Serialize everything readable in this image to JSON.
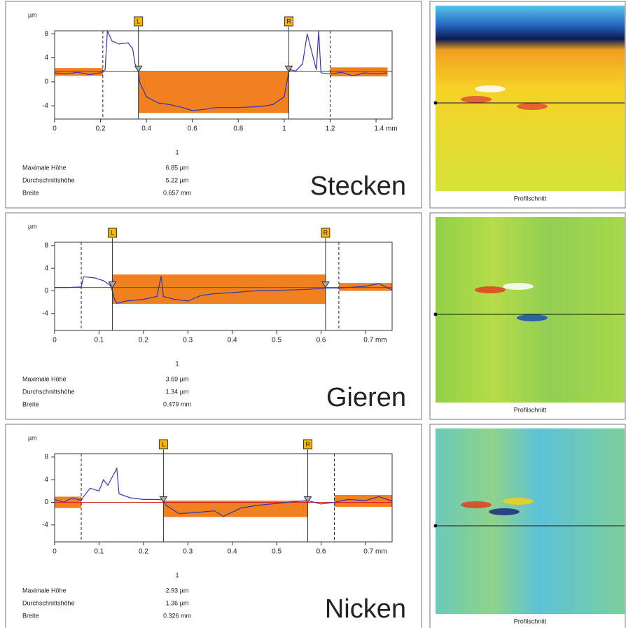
{
  "chart_data": [
    {
      "type": "line",
      "name": "Stecken",
      "ylabel": "µm",
      "image_caption": "Profilschnitt",
      "xlim": [
        0,
        1.47
      ],
      "ylim": [
        -6.2,
        8.5
      ],
      "xticks": [
        0,
        0.2,
        0.4,
        0.6,
        0.8,
        1,
        1.2,
        {
          "value": 1.4,
          "label": "1.4 mm"
        }
      ],
      "yticks": [
        -4,
        0,
        4,
        8
      ],
      "color": "#3535b0",
      "reference_y": 1.7,
      "reference_color": "#e02020",
      "band_color": "#f08020",
      "x": [
        0,
        0.05,
        0.1,
        0.15,
        0.2,
        0.22,
        0.23,
        0.25,
        0.28,
        0.32,
        0.34,
        0.35,
        0.365,
        0.37,
        0.4,
        0.45,
        0.5,
        0.55,
        0.6,
        0.65,
        0.7,
        0.8,
        0.9,
        0.95,
        1.0,
        1.02,
        1.03,
        1.05,
        1.08,
        1.1,
        1.12,
        1.14,
        1.15,
        1.16,
        1.2,
        1.25,
        1.3,
        1.35,
        1.4,
        1.45
      ],
      "values": [
        1.5,
        1.3,
        1.6,
        1.2,
        1.5,
        2,
        8.5,
        6.8,
        6.3,
        6.5,
        5.5,
        3,
        1.7,
        0,
        -2.5,
        -3.5,
        -3.8,
        -4.2,
        -4.8,
        -4.6,
        -4.3,
        -4.3,
        -4.1,
        -3.8,
        -2.5,
        1.7,
        2,
        1.8,
        3,
        8,
        5,
        2,
        8.5,
        1.5,
        1.3,
        1.6,
        1.0,
        1.5,
        1.3,
        1.5
      ],
      "bands": [
        {
          "x": [
            0,
            0.21
          ],
          "y": [
            1,
            2.3
          ]
        },
        {
          "x": [
            0.365,
            1.02
          ],
          "y": [
            -5.2,
            1.7
          ]
        },
        {
          "x": [
            1.2,
            1.45
          ],
          "y": [
            0.9,
            2.4
          ]
        }
      ],
      "markers": [
        {
          "label": "L",
          "x": 0.365
        },
        {
          "label": "R",
          "x": 1.02
        }
      ],
      "dashed_x": [
        0.21,
        1.2
      ],
      "stats": {
        "column": "1",
        "rows": [
          [
            "Maximale Höhe",
            "6.85 µm"
          ],
          [
            "Durchschnittshöhe",
            "5.22 µm"
          ],
          [
            "Breite",
            "0.657 mm"
          ]
        ]
      }
    },
    {
      "type": "line",
      "name": "Gieren",
      "ylabel": "µm",
      "image_caption": "Profilschnitt",
      "xlim": [
        0,
        0.76
      ],
      "ylim": [
        -7,
        8.6
      ],
      "xticks": [
        0,
        0.1,
        0.2,
        0.3,
        0.4,
        0.5,
        0.6,
        {
          "value": 0.7,
          "label": "0.7 mm"
        }
      ],
      "yticks": [
        -4,
        0,
        4,
        8
      ],
      "color": "#3535b0",
      "reference_y": 0.6,
      "reference_color": "#e02020",
      "band_color": "#f08020",
      "x": [
        0,
        0.03,
        0.06,
        0.065,
        0.09,
        0.11,
        0.125,
        0.13,
        0.135,
        0.14,
        0.16,
        0.2,
        0.23,
        0.24,
        0.245,
        0.27,
        0.3,
        0.33,
        0.36,
        0.4,
        0.45,
        0.5,
        0.55,
        0.6,
        0.61,
        0.64,
        0.7,
        0.73,
        0.75,
        0.76
      ],
      "values": [
        0.6,
        0.6,
        0.7,
        2.5,
        2.3,
        1.8,
        1,
        0,
        -1.5,
        -2.2,
        -1.8,
        -1.5,
        -1,
        2.6,
        -1,
        -1.5,
        -1.8,
        -0.8,
        -0.5,
        -0.3,
        0,
        0.1,
        0.2,
        0.4,
        0.5,
        0.5,
        0.8,
        1.3,
        0.5,
        0.2
      ],
      "bands": [
        {
          "x": [
            0.13,
            0.61
          ],
          "y": [
            -2.3,
            2.9
          ]
        },
        {
          "x": [
            0.64,
            0.76
          ],
          "y": [
            0,
            1.4
          ]
        }
      ],
      "markers": [
        {
          "label": "L",
          "x": 0.13
        },
        {
          "label": "R",
          "x": 0.61
        }
      ],
      "dashed_x": [
        0.06,
        0.64
      ],
      "stats": {
        "column": "1",
        "rows": [
          [
            "Maximale Höhe",
            "3.69 µm"
          ],
          [
            "Durchschnittshöhe",
            "1.34 µm"
          ],
          [
            "Breite",
            "0.479 mm"
          ]
        ]
      }
    },
    {
      "type": "line",
      "name": "Nicken",
      "ylabel": "µm",
      "image_caption": "Profilschnitt",
      "xlim": [
        0,
        0.76
      ],
      "ylim": [
        -7,
        8.6
      ],
      "xticks": [
        0,
        0.1,
        0.2,
        0.3,
        0.4,
        0.5,
        0.6,
        {
          "value": 0.7,
          "label": "0.7 mm"
        }
      ],
      "yticks": [
        -4,
        0,
        4,
        8
      ],
      "color": "#3535b0",
      "reference_y": 0,
      "reference_color": "#e02020",
      "band_color": "#f08020",
      "x": [
        0,
        0.02,
        0.04,
        0.06,
        0.065,
        0.08,
        0.1,
        0.11,
        0.12,
        0.13,
        0.14,
        0.145,
        0.17,
        0.2,
        0.23,
        0.245,
        0.25,
        0.28,
        0.32,
        0.36,
        0.38,
        0.42,
        0.46,
        0.5,
        0.55,
        0.57,
        0.6,
        0.63,
        0.66,
        0.7,
        0.73,
        0.76
      ],
      "values": [
        0.5,
        0,
        0.8,
        0.3,
        1,
        2.5,
        2,
        4,
        3,
        4.5,
        6,
        1.5,
        0.8,
        0.5,
        0.5,
        0.4,
        -0.5,
        -2,
        -1.8,
        -1.5,
        -2.5,
        -1,
        -0.5,
        -0.2,
        0.2,
        0.3,
        -0.3,
        0,
        0.5,
        0.3,
        1,
        0.2
      ],
      "bands": [
        {
          "x": [
            0,
            0.06
          ],
          "y": [
            -1,
            1
          ]
        },
        {
          "x": [
            0.245,
            0.57
          ],
          "y": [
            -2.6,
            0.3
          ]
        },
        {
          "x": [
            0.63,
            0.76
          ],
          "y": [
            -0.8,
            1.3
          ]
        }
      ],
      "markers": [
        {
          "label": "L",
          "x": 0.245
        },
        {
          "label": "R",
          "x": 0.57
        }
      ],
      "dashed_x": [
        0.06,
        0.63
      ],
      "stats": {
        "column": "1",
        "rows": [
          [
            "Maximale Höhe",
            "2.93 µm"
          ],
          [
            "Durchschnittshöhe",
            "1.36 µm"
          ],
          [
            "Breite",
            "0.326 mm"
          ]
        ]
      }
    }
  ]
}
